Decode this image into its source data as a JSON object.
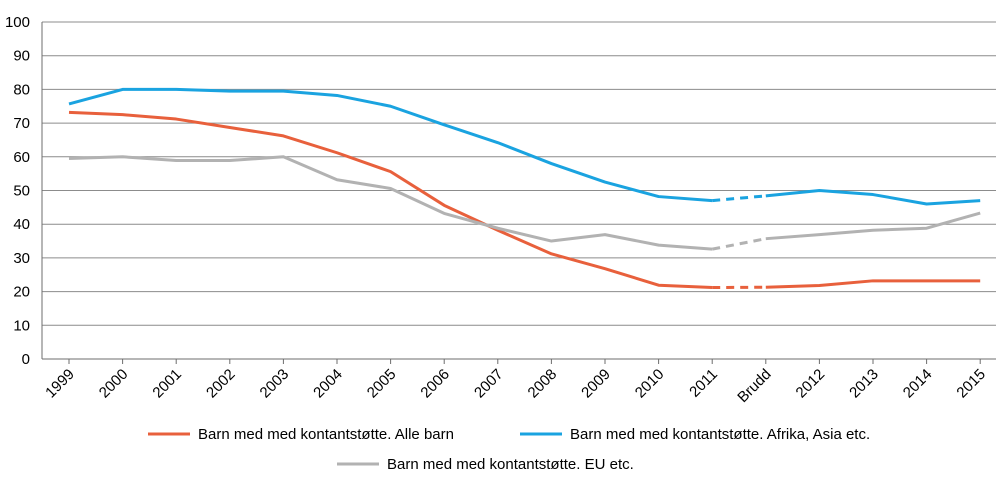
{
  "chart_data": {
    "type": "line",
    "categories": [
      "1999",
      "2000",
      "2001",
      "2002",
      "2003",
      "2004",
      "2005",
      "2006",
      "2007",
      "2008",
      "2009",
      "2010",
      "2011",
      "Brudd",
      "2012",
      "2013",
      "2014",
      "2015"
    ],
    "ylim": [
      0,
      100
    ],
    "yticks": [
      "0",
      "10",
      "20",
      "30",
      "40",
      "50",
      "60",
      "70",
      "80",
      "90",
      "100"
    ],
    "grid": true,
    "legend_position": "bottom",
    "break_segment": {
      "from": "2011",
      "to": "Brudd",
      "style": "dashed"
    },
    "series": [
      {
        "name": "Barn med med kontantstøtte. Alle barn",
        "color": "#e8603c",
        "values": [
          73.2,
          72.5,
          71.2,
          68.7,
          66.2,
          61.2,
          55.6,
          45.6,
          38.2,
          31.2,
          26.8,
          21.9,
          21.2,
          21.3,
          21.8,
          23.2,
          23.2,
          23.2
        ]
      },
      {
        "name": "Barn med med kontantstøtte. Afrika, Asia etc.",
        "color": "#1aa3e0",
        "values": [
          75.7,
          80.0,
          80.0,
          79.5,
          79.5,
          78.2,
          75.0,
          69.5,
          64.2,
          58.0,
          52.5,
          48.2,
          47.0,
          48.4,
          50.0,
          48.8,
          46.0,
          47.0
        ]
      },
      {
        "name": "Barn med med kontantstøtte. EU etc.",
        "color": "#b2b2b2",
        "values": [
          59.5,
          60.0,
          58.9,
          58.9,
          60.0,
          53.2,
          50.6,
          43.2,
          38.8,
          35.0,
          36.9,
          33.8,
          32.6,
          35.7,
          36.9,
          38.2,
          38.8,
          43.3
        ]
      }
    ]
  }
}
